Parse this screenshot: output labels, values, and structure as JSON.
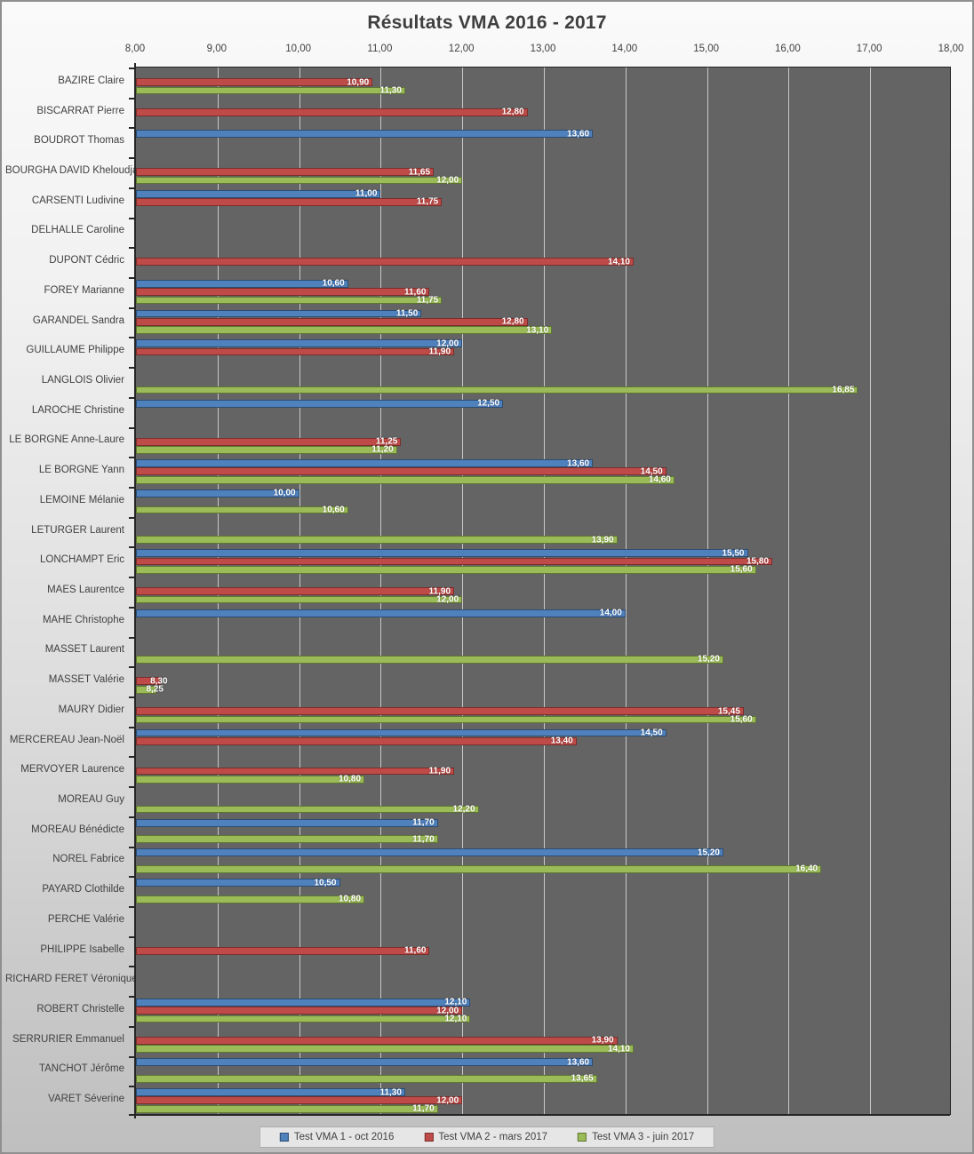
{
  "chart_data": {
    "type": "bar",
    "orientation": "horizontal",
    "title": "Résultats VMA 2016 - 2017",
    "xlabel": "",
    "ylabel": "",
    "xlim": [
      8,
      18
    ],
    "x_tick_step": 1,
    "x_tick_labels": [
      "8,00",
      "9,00",
      "10,00",
      "11,00",
      "12,00",
      "13,00",
      "14,00",
      "15,00",
      "16,00",
      "17,00",
      "18,00"
    ],
    "grid": true,
    "legend_position": "bottom",
    "decimal_separator": ",",
    "value_format": "0,00",
    "plot_background": "#646464",
    "gridline_color": "#c8c8c8",
    "categories": [
      "BAZIRE Claire",
      "BISCARRAT Pierre",
      "BOUDROT Thomas",
      "BOURGHA DAVID Kheloudja",
      "CARSENTI Ludivine",
      "DELHALLE Caroline",
      "DUPONT Cédric",
      "FOREY Marianne",
      "GARANDEL Sandra",
      "GUILLAUME Philippe",
      "LANGLOIS Olivier",
      "LAROCHE Christine",
      "LE BORGNE Anne-Laure",
      "LE BORGNE Yann",
      "LEMOINE Mélanie",
      "LETURGER Laurent",
      "LONCHAMPT Eric",
      "MAES Laurentce",
      "MAHE Christophe",
      "MASSET Laurent",
      "MASSET Valérie",
      "MAURY  Didier",
      "MERCEREAU Jean-Noël",
      "MERVOYER Laurence",
      "MOREAU Guy",
      "MOREAU Bénédicte",
      "NOREL Fabrice",
      "PAYARD Clothilde",
      "PERCHE Valérie",
      "PHILIPPE Isabelle",
      "RICHARD FERET Véronique",
      "ROBERT Christelle",
      "SERRURIER Emmanuel",
      "TANCHOT Jérôme",
      "VARET Séverine"
    ],
    "series": [
      {
        "name": "Test VMA 1 - oct 2016",
        "color": "#4F81BD",
        "border_color": "#2d4d71",
        "values": [
          null,
          null,
          13.6,
          null,
          11.0,
          null,
          null,
          10.6,
          11.5,
          12.0,
          null,
          12.5,
          null,
          13.6,
          10.0,
          null,
          15.5,
          null,
          14.0,
          null,
          null,
          null,
          14.5,
          null,
          null,
          11.7,
          15.2,
          10.5,
          null,
          null,
          null,
          12.1,
          null,
          13.6,
          11.3
        ]
      },
      {
        "name": "Test VMA 2 - mars 2017",
        "color": "#BE4B48",
        "border_color": "#7a2e2c",
        "values": [
          10.9,
          12.8,
          null,
          11.65,
          11.75,
          null,
          14.1,
          11.6,
          12.8,
          11.9,
          null,
          null,
          11.25,
          14.5,
          null,
          null,
          15.8,
          11.9,
          null,
          null,
          8.3,
          15.45,
          13.4,
          11.9,
          null,
          null,
          null,
          null,
          null,
          11.6,
          null,
          12.0,
          13.9,
          null,
          12.0
        ]
      },
      {
        "name": "Test VMA 3 - juin 2017",
        "color": "#9BBB59",
        "border_color": "#5f7731",
        "values": [
          11.3,
          null,
          null,
          12.0,
          null,
          null,
          null,
          11.75,
          13.1,
          null,
          16.85,
          null,
          11.2,
          14.6,
          10.6,
          13.9,
          15.6,
          12.0,
          null,
          15.2,
          8.25,
          15.6,
          null,
          10.8,
          12.2,
          11.7,
          16.4,
          10.8,
          null,
          null,
          null,
          12.1,
          14.1,
          13.65,
          11.7
        ]
      }
    ]
  }
}
